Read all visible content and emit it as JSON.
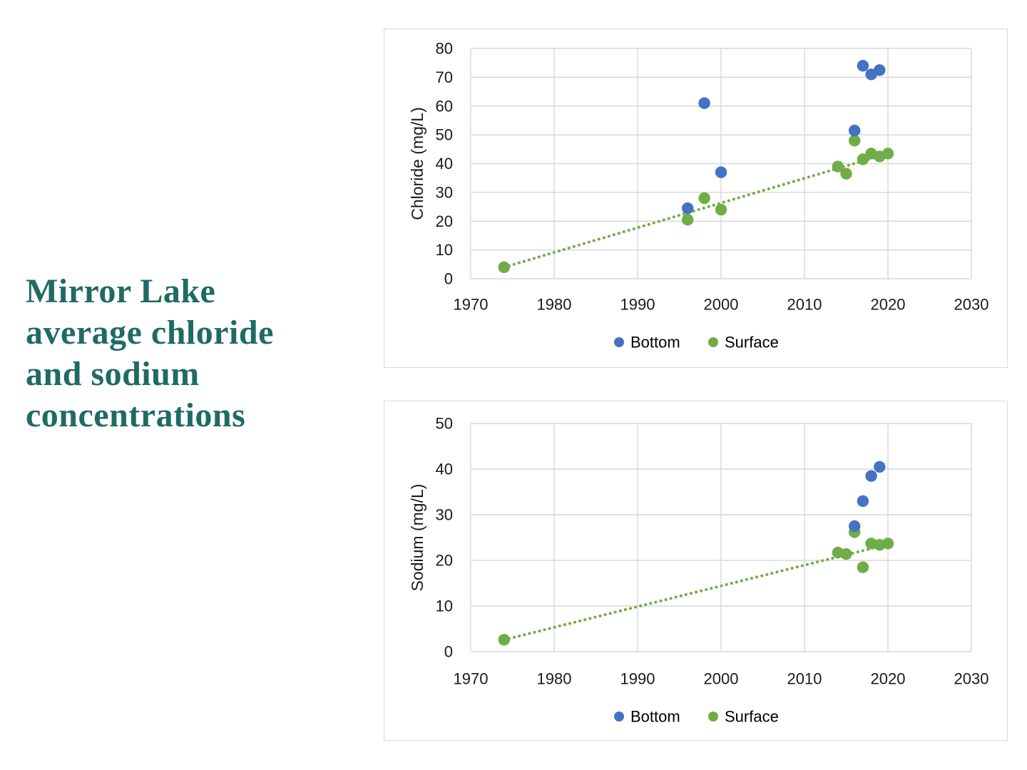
{
  "title": {
    "lines": [
      "Mirror Lake",
      "average chloride",
      "and sodium",
      "concentrations"
    ],
    "color": "#206a64"
  },
  "colors": {
    "bottom_series": "#4472C4",
    "surface_series": "#70AD47",
    "trendline": "#70AD47",
    "gridline": "#d9d9d9",
    "card_border": "#d9d9d9",
    "axis_text": "#1a1a1a"
  },
  "legend": {
    "items": [
      {
        "label": "Bottom",
        "color": "#4472C4"
      },
      {
        "label": "Surface",
        "color": "#70AD47"
      }
    ]
  },
  "chart_data": [
    {
      "type": "scatter",
      "ylabel": "Chloride (mg/L)",
      "xlabel": "",
      "xlim": [
        1970,
        2030
      ],
      "ylim": [
        0,
        80
      ],
      "xticks": [
        1970,
        1980,
        1990,
        2000,
        2010,
        2020,
        2030
      ],
      "yticks": [
        0,
        10,
        20,
        30,
        40,
        50,
        60,
        70,
        80
      ],
      "grid": true,
      "legend_position": "bottom",
      "series": [
        {
          "name": "Bottom",
          "color": "#4472C4",
          "points": [
            [
              1996,
              24.5
            ],
            [
              1998,
              61
            ],
            [
              2000,
              37
            ],
            [
              2016,
              51.5
            ],
            [
              2017,
              74
            ],
            [
              2018,
              71
            ],
            [
              2019,
              72.5
            ]
          ]
        },
        {
          "name": "Surface",
          "color": "#70AD47",
          "points": [
            [
              1974,
              4
            ],
            [
              1996,
              20.5
            ],
            [
              1998,
              28
            ],
            [
              2000,
              24
            ],
            [
              2014,
              39
            ],
            [
              2015,
              36.5
            ],
            [
              2016,
              48
            ],
            [
              2017,
              41.5
            ],
            [
              2018,
              43.5
            ],
            [
              2019,
              42.5
            ],
            [
              2020,
              43.5
            ]
          ]
        }
      ],
      "trendline": {
        "series": "Surface",
        "style": "dotted",
        "color": "#70AD47",
        "from": [
          1974,
          4
        ],
        "to": [
          2020,
          43.5
        ]
      }
    },
    {
      "type": "scatter",
      "ylabel": "Sodium (mg/L)",
      "xlabel": "",
      "xlim": [
        1970,
        2030
      ],
      "ylim": [
        0,
        50
      ],
      "xticks": [
        1970,
        1980,
        1990,
        2000,
        2010,
        2020,
        2030
      ],
      "yticks": [
        0,
        10,
        20,
        30,
        40,
        50
      ],
      "grid": true,
      "legend_position": "bottom",
      "series": [
        {
          "name": "Bottom",
          "color": "#4472C4",
          "points": [
            [
              2016,
              27.5
            ],
            [
              2017,
              33
            ],
            [
              2018,
              38.5
            ],
            [
              2019,
              40.5
            ]
          ]
        },
        {
          "name": "Surface",
          "color": "#70AD47",
          "points": [
            [
              1974,
              2.6
            ],
            [
              2014,
              21.7
            ],
            [
              2015,
              21.4
            ],
            [
              2016,
              26.2
            ],
            [
              2017,
              18.5
            ],
            [
              2018,
              23.7
            ],
            [
              2019,
              23.4
            ],
            [
              2020,
              23.7
            ]
          ]
        }
      ],
      "trendline": {
        "series": "Surface",
        "style": "dotted",
        "color": "#70AD47",
        "from": [
          1974,
          2.6
        ],
        "to": [
          2020,
          23.5
        ]
      }
    }
  ]
}
